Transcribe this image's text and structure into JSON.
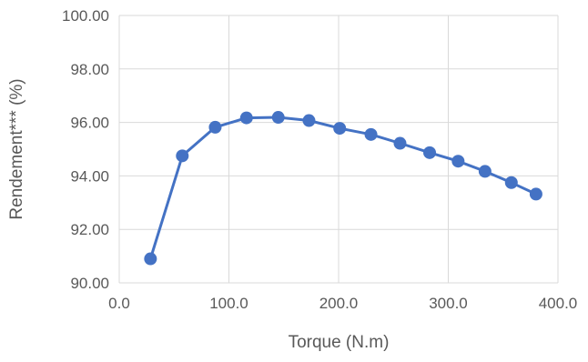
{
  "chart_data": {
    "type": "line",
    "title": "",
    "xlabel": "Torque (N.m)",
    "ylabel": "Rendement*** (%)",
    "xlim": [
      0,
      400
    ],
    "ylim": [
      90,
      100
    ],
    "x_ticks": [
      "0.0",
      "100.0",
      "200.0",
      "300.0",
      "400.0"
    ],
    "y_ticks": [
      "90.00",
      "92.00",
      "94.00",
      "96.00",
      "98.00",
      "100.00"
    ],
    "grid": true,
    "legend": "none",
    "series": [
      {
        "color": "#4472C4",
        "marker": "circle",
        "x": [
          28.5,
          57.5,
          87.5,
          116.0,
          145.0,
          173.0,
          201.0,
          229.5,
          256.0,
          283.0,
          309.0,
          333.5,
          357.5,
          380.0
        ],
        "y": [
          90.9,
          94.75,
          95.82,
          96.17,
          96.19,
          96.07,
          95.78,
          95.55,
          95.22,
          94.87,
          94.55,
          94.17,
          93.75,
          93.32
        ]
      }
    ]
  }
}
